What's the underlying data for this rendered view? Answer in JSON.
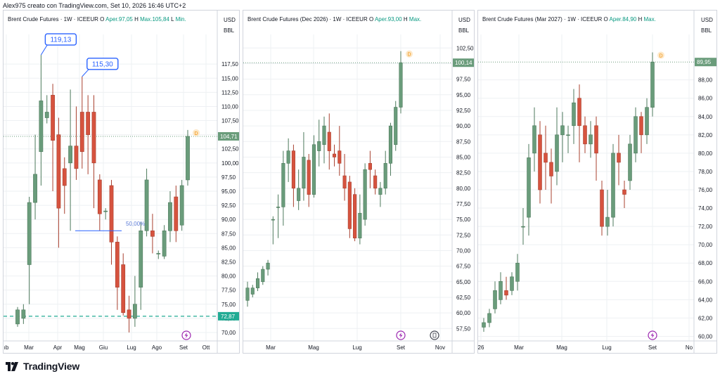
{
  "header": "Alex975 creato con TradingView.com, Set 10, 2026 16:46 UTC+2",
  "brand": "TradingView",
  "colors": {
    "up": "#6a9c7b",
    "down": "#d6533f",
    "grid": "#eef0f3",
    "axis_text": "#131722",
    "price_line": "#2962ff",
    "teal": "#22ab94"
  },
  "chart_data": [
    {
      "type": "candlestick",
      "title": "Brent Crude Futures · 1W · ICEEUR",
      "ohlc_text": {
        "o": "O",
        "o_val": "Aper.97,05",
        "h": "H",
        "h_val": "Max.105,84",
        "l": "L",
        "l_val": "Min."
      },
      "currency": "USD",
      "unit": "BBL",
      "ylim": [
        68.5,
        122
      ],
      "yticks": [
        "117,50",
        "115,00",
        "112,50",
        "110,00",
        "107,50",
        "105,00",
        "102,50",
        "100,00",
        "97,50",
        "95,00",
        "92,50",
        "90,00",
        "87,50",
        "85,00",
        "82,50",
        "80,00",
        "77,50",
        "75,00",
        "72,50",
        "70,00"
      ],
      "xticks": [
        "ıb",
        "Mar",
        "Apr",
        "Mag",
        "Giu",
        "Lug",
        "Ago",
        "Set",
        "Ott"
      ],
      "last_price": "104,71",
      "marker_line_price": "72,87",
      "annotations": [
        {
          "label": "119,13",
          "price": 119.13
        },
        {
          "label": "115,30",
          "price": 115.3
        },
        {
          "label": "50,00%",
          "price": 89.0
        }
      ],
      "candles": [
        [
          71.5,
          74.0,
          71.0,
          74.5
        ],
        [
          72.5,
          74.0,
          71.5,
          75.0
        ],
        [
          82.0,
          93.0,
          75.0,
          94.0
        ],
        [
          93.0,
          98.0,
          90.0,
          105.0
        ],
        [
          102.0,
          111.0,
          96.0,
          119.13
        ],
        [
          108.0,
          109.0,
          107.0,
          112.0
        ],
        [
          112.0,
          104.0,
          95.0,
          114.0
        ],
        [
          105.0,
          92.0,
          85.0,
          108.0
        ],
        [
          99.0,
          96.0,
          91.0,
          101.0
        ],
        [
          100.0,
          103.0,
          88.0,
          113.0
        ],
        [
          103.0,
          99.0,
          97.0,
          110.0
        ],
        [
          109.0,
          102.0,
          99.0,
          115.3
        ],
        [
          109.0,
          105.0,
          98.0,
          112.0
        ],
        [
          109.0,
          100.0,
          92.0,
          112.0
        ],
        [
          97.0,
          91.0,
          88.0,
          98.0
        ],
        [
          91.5,
          91.5,
          90.0,
          92.0
        ],
        [
          96.0,
          86.0,
          82.0,
          97.0
        ],
        [
          86.0,
          78.0,
          74.0,
          87.0
        ],
        [
          82.0,
          73.5,
          73.0,
          84.0
        ],
        [
          74.0,
          72.5,
          70.0,
          76.5
        ],
        [
          72.5,
          75.0,
          71.0,
          80.0
        ],
        [
          78.0,
          88.0,
          74.0,
          89.5
        ],
        [
          88.0,
          97.0,
          87.0,
          99.0
        ],
        [
          88.0,
          87.0,
          84.0,
          91.0
        ],
        [
          84.0,
          84.0,
          83.0,
          84.5
        ],
        [
          83.5,
          88.0,
          83.0,
          89.0
        ],
        [
          88.0,
          93.0,
          86.0,
          95.0
        ],
        [
          94.0,
          88.0,
          86.0,
          96.0
        ],
        [
          89.0,
          96.0,
          88.0,
          97.0
        ],
        [
          97.0,
          104.71,
          96.0,
          105.84
        ]
      ]
    },
    {
      "type": "candlestick",
      "title": "Brent Crude Futures (Dec 2026) · 1W · ICEEUR",
      "ohlc_text": {
        "o": "O",
        "o_val": "Aper.93,00",
        "h": "H",
        "h_val": "Max.",
        "l": "",
        "l_val": ""
      },
      "currency": "USD",
      "unit": "BBL",
      "ylim": [
        55.5,
        104
      ],
      "yticks": [
        "102,50",
        "100,00",
        "97,50",
        "95,00",
        "92,50",
        "90,00",
        "87,50",
        "85,00",
        "82,50",
        "80,00",
        "77,50",
        "75,00",
        "72,50",
        "70,00",
        "67,50",
        "65,00",
        "62,50",
        "60,00",
        "57,50"
      ],
      "xticks": [
        "Mar",
        "Mag",
        "Lug",
        "Set",
        "Nov"
      ],
      "last_price": "100,14",
      "candles": [
        [
          62.0,
          64.0,
          61.0,
          65.0
        ],
        [
          63.0,
          64.0,
          62.5,
          64.5
        ],
        [
          64.0,
          65.5,
          63.5,
          66.5
        ],
        [
          65.0,
          67.0,
          64.5,
          67.5
        ],
        [
          67.0,
          68.0,
          66.0,
          68.5
        ],
        [
          75.0,
          75.0,
          71.0,
          75.5
        ],
        [
          77.0,
          77.0,
          72.0,
          79.0
        ],
        [
          77.0,
          84.0,
          74.0,
          86.0
        ],
        [
          84.0,
          86.0,
          81.0,
          88.0
        ],
        [
          86.0,
          80.0,
          77.0,
          87.0
        ],
        [
          78.0,
          80.0,
          76.5,
          83.0
        ],
        [
          80.0,
          85.0,
          78.0,
          89.0
        ],
        [
          84.5,
          79.0,
          77.0,
          85.5
        ],
        [
          79.0,
          87.0,
          78.5,
          88.5
        ],
        [
          86.0,
          87.5,
          83.5,
          91.0
        ],
        [
          87.0,
          90.0,
          84.0,
          91.5
        ],
        [
          89.0,
          86.0,
          83.0,
          92.0
        ],
        [
          85.5,
          85.0,
          83.5,
          87.0
        ],
        [
          86.0,
          84.0,
          82.0,
          90.0
        ],
        [
          82.0,
          80.0,
          78.0,
          85.5
        ],
        [
          81.0,
          73.5,
          72.0,
          82.0
        ],
        [
          79.0,
          72.0,
          71.5,
          80.0
        ],
        [
          72.0,
          76.0,
          71.0,
          79.0
        ],
        [
          75.0,
          83.0,
          74.0,
          84.0
        ],
        [
          84.0,
          83.0,
          80.0,
          86.0
        ],
        [
          82.0,
          80.0,
          79.0,
          83.0
        ],
        [
          79.0,
          80.0,
          77.0,
          81.0
        ],
        [
          80.0,
          84.0,
          79.0,
          86.0
        ],
        [
          84.0,
          90.0,
          82.0,
          90.5
        ],
        [
          87.0,
          93.0,
          86.0,
          94.0
        ],
        [
          93.0,
          100.14,
          92.0,
          102.0
        ]
      ]
    },
    {
      "type": "candlestick",
      "title": "Brent Crude Futures (Mar 2027) · 1W · ICEEUR",
      "ohlc_text": {
        "o": "O",
        "o_val": "Aper.84,90",
        "h": "H",
        "h_val": "Max.",
        "l": "",
        "l_val": ""
      },
      "currency": "USD",
      "unit": "BBL",
      "ylim": [
        59.5,
        92.5
      ],
      "yticks": [
        "88,00",
        "86,00",
        "84,00",
        "82,00",
        "80,00",
        "78,00",
        "76,00",
        "74,00",
        "72,00",
        "70,00",
        "68,00",
        "66,00",
        "64,00",
        "62,00",
        "60,00"
      ],
      "xticks": [
        "26",
        "Mar",
        "Mag",
        "Lug",
        "Set",
        "No"
      ],
      "last_price": "89,95",
      "candles": [
        [
          61.0,
          61.5,
          60.5,
          62.0
        ],
        [
          61.5,
          62.5,
          61.0,
          63.0
        ],
        [
          63.0,
          65.0,
          62.5,
          66.0
        ],
        [
          64.0,
          66.0,
          63.5,
          67.0
        ],
        [
          65.0,
          64.5,
          64.0,
          66.5
        ],
        [
          65.0,
          66.5,
          64.5,
          67.0
        ],
        [
          66.0,
          68.0,
          65.0,
          69.0
        ],
        [
          72.0,
          72.0,
          70.0,
          74.0
        ],
        [
          73.0,
          79.5,
          71.0,
          81.0
        ],
        [
          80.0,
          83.0,
          78.0,
          85.0
        ],
        [
          82.0,
          76.0,
          74.5,
          83.5
        ],
        [
          80.0,
          79.0,
          76.0,
          83.0
        ],
        [
          79.0,
          77.5,
          74.5,
          80.5
        ],
        [
          78.0,
          82.0,
          76.5,
          85.0
        ],
        [
          82.0,
          83.0,
          79.0,
          84.5
        ],
        [
          82.0,
          82.0,
          80.0,
          83.0
        ],
        [
          83.0,
          85.5,
          81.0,
          87.0
        ],
        [
          86.0,
          83.0,
          79.0,
          87.5
        ],
        [
          83.0,
          81.0,
          80.0,
          84.0
        ],
        [
          81.0,
          82.0,
          79.5,
          83.5
        ],
        [
          83.0,
          80.0,
          77.0,
          84.0
        ],
        [
          76.0,
          72.0,
          71.0,
          77.0
        ],
        [
          72.0,
          73.0,
          71.0,
          76.0
        ],
        [
          73.0,
          80.0,
          72.0,
          81.0
        ],
        [
          80.0,
          79.0,
          76.5,
          82.0
        ],
        [
          76.0,
          75.5,
          74.0,
          77.0
        ],
        [
          77.0,
          81.0,
          76.0,
          82.0
        ],
        [
          80.0,
          84.0,
          79.0,
          85.0
        ],
        [
          84.0,
          82.0,
          80.0,
          84.5
        ],
        [
          82.0,
          85.0,
          81.0,
          86.0
        ],
        [
          85.0,
          89.95,
          84.0,
          91.0
        ]
      ]
    }
  ]
}
